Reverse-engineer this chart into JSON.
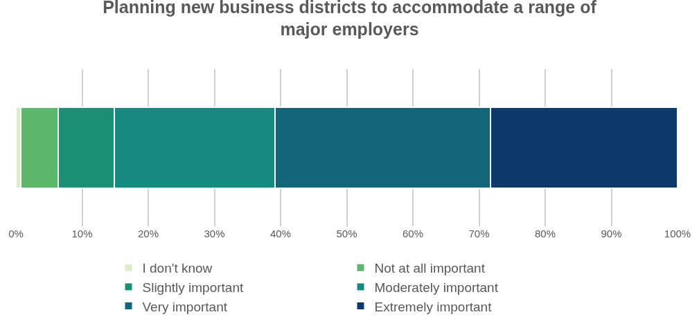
{
  "chart_data": {
    "type": "bar",
    "orientation": "horizontal",
    "stacked": true,
    "title": "Planning new business districts to accommodate a range of major employers",
    "categories": [
      null
    ],
    "series": [
      {
        "name": "I don't know",
        "color": "#dcedc8",
        "values": [
          0.7
        ]
      },
      {
        "name": "Not at all important",
        "color": "#5cb96b",
        "values": [
          5.7
        ]
      },
      {
        "name": "Slightly important",
        "color": "#1c9074",
        "values": [
          8.5
        ]
      },
      {
        "name": "Moderately important",
        "color": "#168a80",
        "values": [
          24.3
        ]
      },
      {
        "name": "Very important",
        "color": "#126679",
        "values": [
          32.5
        ]
      },
      {
        "name": "Extremely important",
        "color": "#0e3a6b",
        "values": [
          28.3
        ]
      }
    ],
    "xlim": [
      0,
      100
    ],
    "xticks": [
      {
        "value": 0,
        "label": "0%"
      },
      {
        "value": 10,
        "label": "10%"
      },
      {
        "value": 20,
        "label": "20%"
      },
      {
        "value": 30,
        "label": "30%"
      },
      {
        "value": 40,
        "label": "40%"
      },
      {
        "value": 50,
        "label": "50%"
      },
      {
        "value": 60,
        "label": "60%"
      },
      {
        "value": 70,
        "label": "70%"
      },
      {
        "value": 80,
        "label": "80%"
      },
      {
        "value": 90,
        "label": "90%"
      },
      {
        "value": 100,
        "label": "100%"
      }
    ],
    "grid": "x",
    "legend": "bottom"
  }
}
